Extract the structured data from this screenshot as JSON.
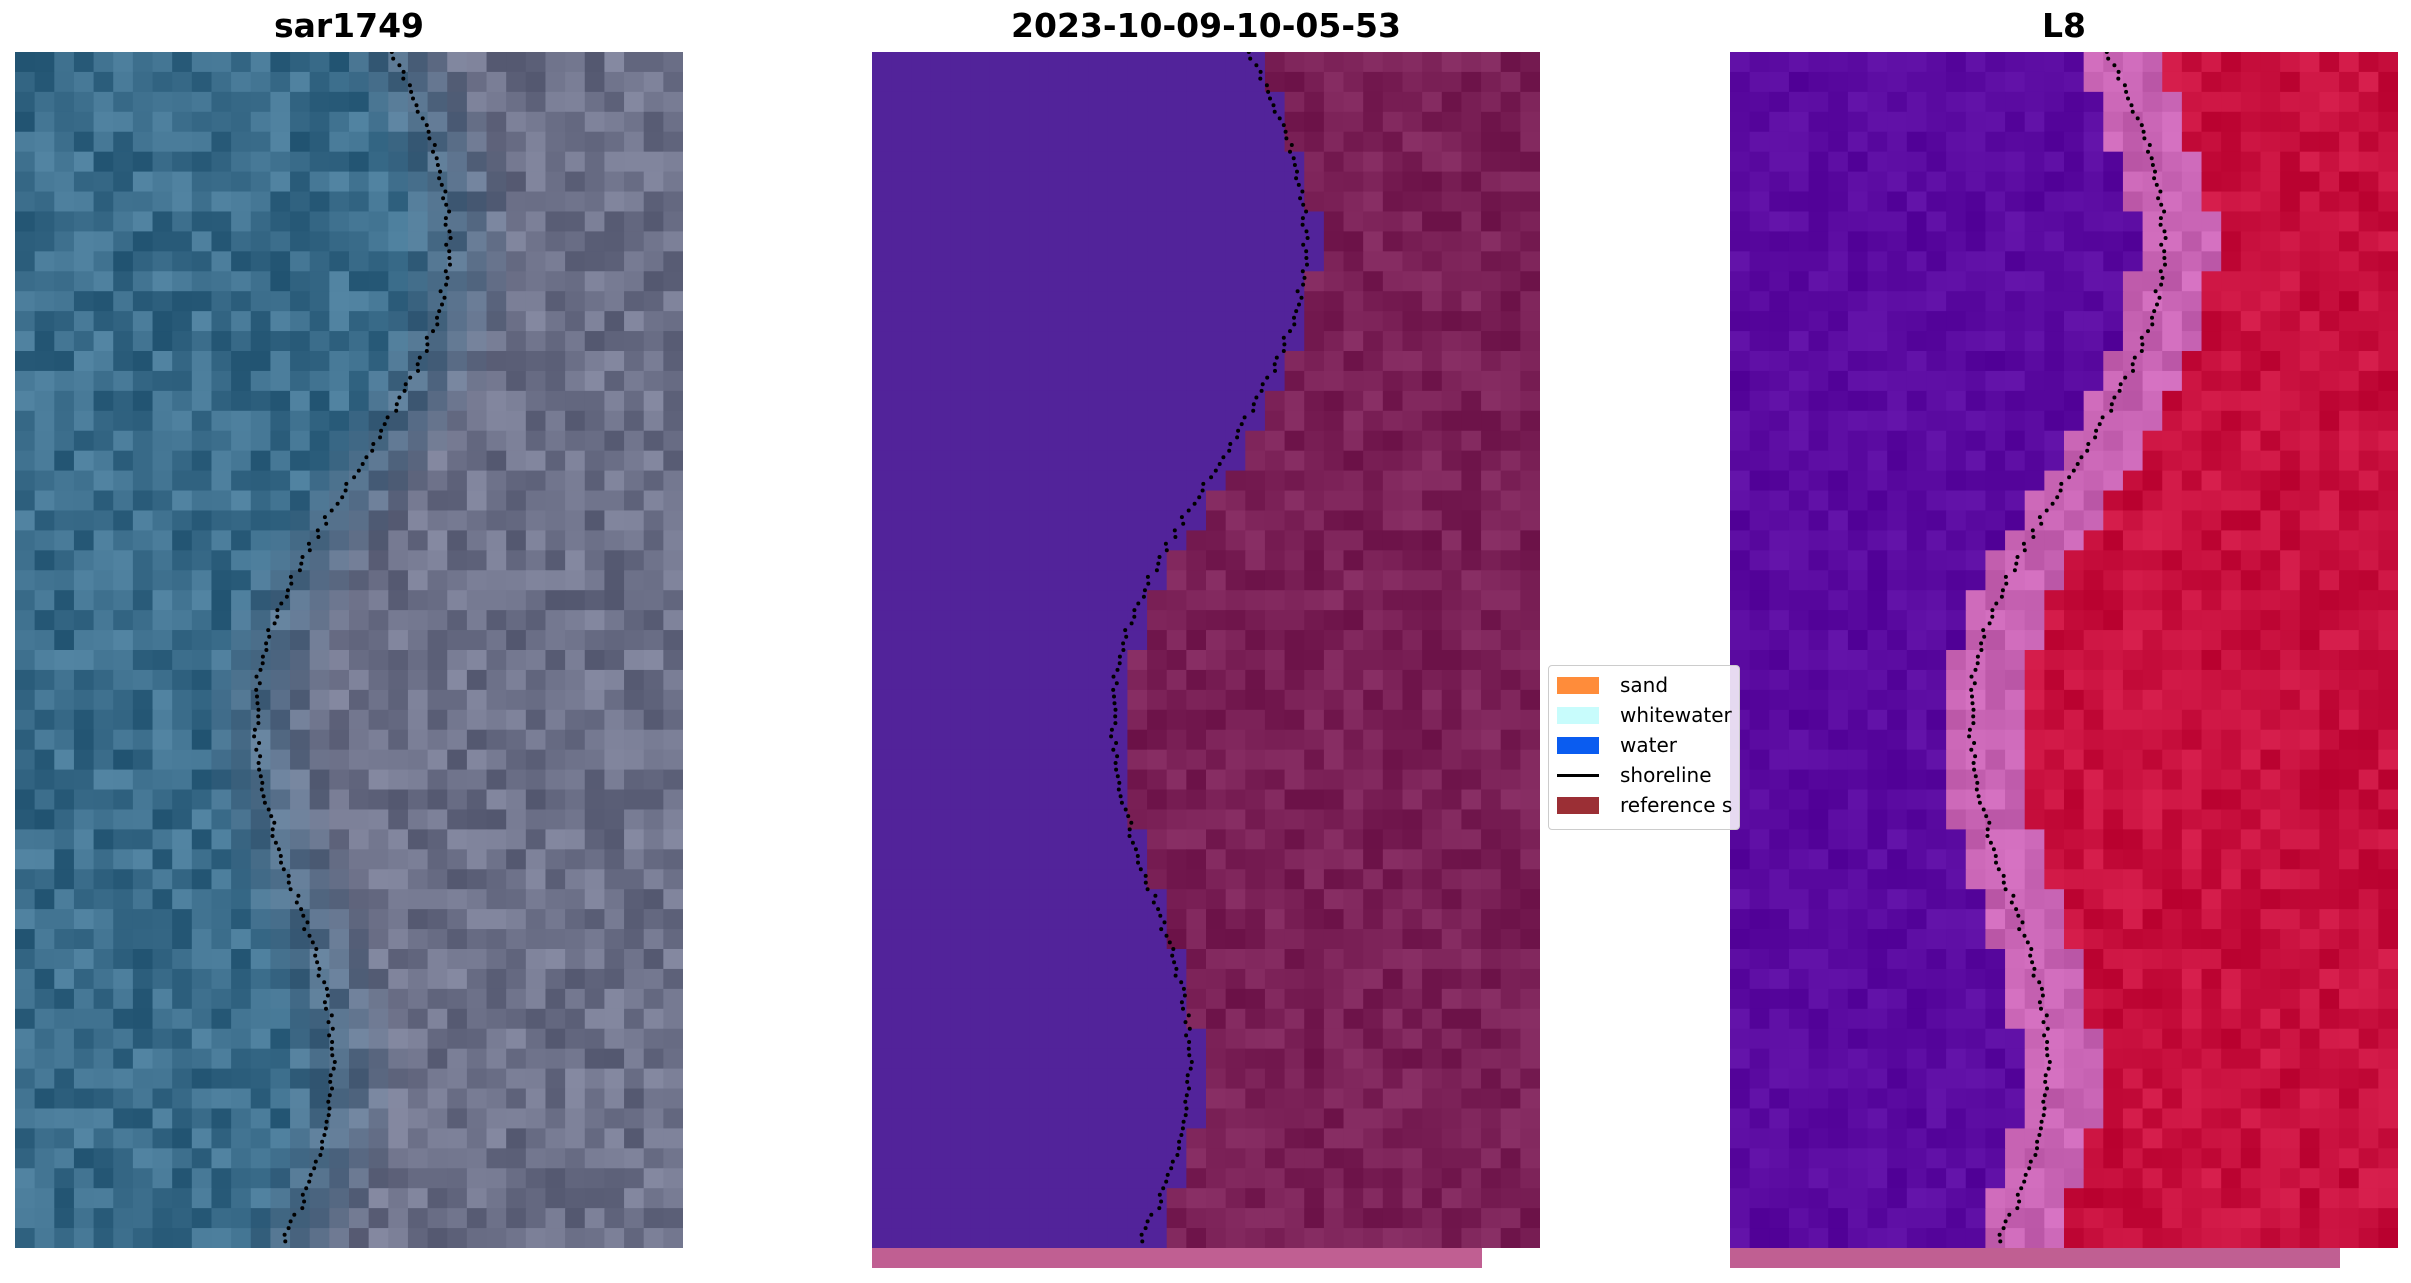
{
  "panels": [
    {
      "title": "sar1749",
      "style": "rgb"
    },
    {
      "title": "2023-10-09-10-05-53",
      "style": "classified"
    },
    {
      "title": "L8",
      "style": "ndwi"
    }
  ],
  "legend": {
    "items": [
      {
        "label": "sand",
        "kind": "patch",
        "color": "#ff8c3a"
      },
      {
        "label": "whitewater",
        "kind": "patch",
        "color": "#c8fcfc"
      },
      {
        "label": "water",
        "kind": "patch",
        "color": "#0a5cf0"
      },
      {
        "label": "shoreline",
        "kind": "line",
        "color": "#000000"
      },
      {
        "label": "reference s",
        "kind": "patch",
        "color": "#9b2f35"
      }
    ]
  },
  "colors": {
    "water_class": "#52239a",
    "land_class": "#7a2056",
    "strip": "#c05f92",
    "rgb_water": "#3a6c8a",
    "rgb_land": "#6c7088",
    "ndwi_water": "#5a0aa0",
    "ndwi_land": "#c8103e",
    "ndwi_edge": "#c864b4"
  }
}
